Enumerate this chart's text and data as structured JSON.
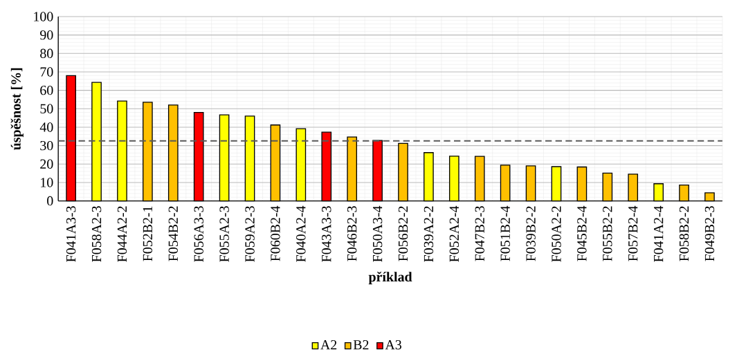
{
  "chart_data": {
    "type": "bar",
    "xlabel": "příklad",
    "ylabel": "úspěšnost [%]",
    "categories": [
      "F041A3-3",
      "F058A2-3",
      "F044A2-2",
      "F052B2-1",
      "F054B2-2",
      "F056A3-3",
      "F055A2-3",
      "F059A2-3",
      "F060B2-4",
      "F040A2-4",
      "F043A3-3",
      "F046B2-3",
      "F050A3-4",
      "F056B2-2",
      "F039A2-2",
      "F052A2-4",
      "F047B2-3",
      "F051B2-4",
      "F039B2-2",
      "F050A2-2",
      "F045B2-4",
      "F055B2-2",
      "F057B2-4",
      "F041A2-4",
      "F058B2-2",
      "F049B2-3"
    ],
    "series": [
      {
        "name": "A2",
        "color": "#ffff00",
        "values": [
          null,
          64.3,
          54.2,
          null,
          null,
          null,
          46.7,
          46,
          null,
          39.2,
          null,
          null,
          null,
          null,
          26.2,
          24.3,
          null,
          null,
          null,
          18.6,
          null,
          null,
          null,
          9.3,
          null,
          null
        ]
      },
      {
        "name": "B2",
        "color": "#ffc000",
        "values": [
          null,
          null,
          null,
          53.5,
          52,
          null,
          null,
          null,
          41.2,
          null,
          null,
          34.7,
          null,
          31.2,
          null,
          null,
          24.2,
          19.4,
          19,
          null,
          18.4,
          15.1,
          14.5,
          null,
          8.6,
          4.4
        ]
      },
      {
        "name": "A3",
        "color": "#ff0000",
        "values": [
          68,
          null,
          null,
          null,
          null,
          48,
          null,
          null,
          null,
          null,
          37.3,
          null,
          32.8,
          null,
          null,
          null,
          null,
          null,
          null,
          null,
          null,
          null,
          null,
          null,
          null,
          null
        ]
      }
    ],
    "ylim": [
      0,
      100
    ],
    "yticks": [
      0,
      10,
      20,
      30,
      40,
      50,
      60,
      70,
      80,
      90,
      100
    ],
    "grid": true,
    "legend": "bottom",
    "ref_lines": [
      {
        "axis": "y",
        "value": 32.6,
        "color": "#595959",
        "line_style": "dashed"
      }
    ]
  }
}
